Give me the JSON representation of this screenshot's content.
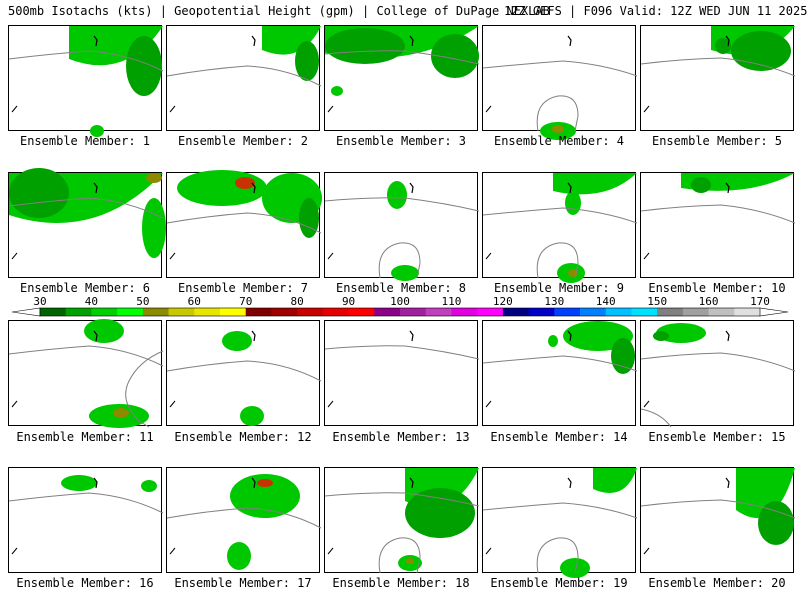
{
  "header": {
    "title_left": "500mb Isotachs (kts) | Geopotential Height (gpm) | College of DuPage NEXLAB",
    "title_right": "12Z GEFS | F096 Valid: 12Z WED JUN 11 2025"
  },
  "panels": [
    {
      "label": "Ensemble Member: 1"
    },
    {
      "label": "Ensemble Member: 2"
    },
    {
      "label": "Ensemble Member: 3"
    },
    {
      "label": "Ensemble Member: 4"
    },
    {
      "label": "Ensemble Member: 5"
    },
    {
      "label": "Ensemble Member: 6"
    },
    {
      "label": "Ensemble Member: 7"
    },
    {
      "label": "Ensemble Member: 8"
    },
    {
      "label": "Ensemble Member: 9"
    },
    {
      "label": "Ensemble Member: 10"
    },
    {
      "label": "Ensemble Member: 11"
    },
    {
      "label": "Ensemble Member: 12"
    },
    {
      "label": "Ensemble Member: 13"
    },
    {
      "label": "Ensemble Member: 14"
    },
    {
      "label": "Ensemble Member: 15"
    },
    {
      "label": "Ensemble Member: 16"
    },
    {
      "label": "Ensemble Member: 17"
    },
    {
      "label": "Ensemble Member: 18"
    },
    {
      "label": "Ensemble Member: 19"
    },
    {
      "label": "Ensemble Member: 20"
    }
  ],
  "colorbar": {
    "unit": "kts",
    "ticks": [
      "30",
      "40",
      "50",
      "60",
      "70",
      "80",
      "90",
      "100",
      "110",
      "120",
      "130",
      "140",
      "150",
      "160",
      "170"
    ],
    "colors": [
      "#006400",
      "#00a000",
      "#00d000",
      "#00ff00",
      "#8b8b00",
      "#c8c800",
      "#e6e600",
      "#ffff00",
      "#800000",
      "#a00000",
      "#c80000",
      "#e60000",
      "#ff0000",
      "#8b008b",
      "#a020a0",
      "#c040c0",
      "#e000e0",
      "#ff00ff",
      "#000080",
      "#0000c8",
      "#0040ff",
      "#0080ff",
      "#00c0ff",
      "#00e0ff",
      "#808080",
      "#a0a0a0",
      "#c0c0c0",
      "#e0e0e0"
    ]
  },
  "colors": {
    "wind_dark": "#00a000",
    "wind_mid": "#00c800",
    "wind_light": "#00e000",
    "wind_olive": "#8b8b00",
    "wind_red": "#c83200",
    "contour": "#808080"
  }
}
